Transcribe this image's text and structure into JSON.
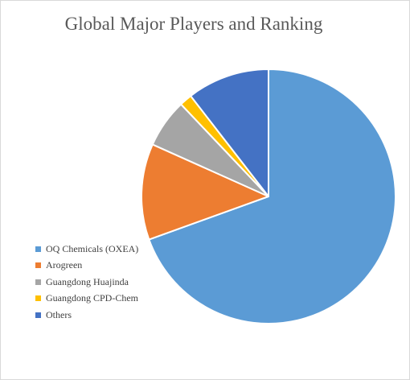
{
  "chart_data": {
    "type": "pie",
    "title": "Global Major Players and Ranking",
    "legend_position": "left",
    "slices": [
      {
        "label": "OQ Chemicals (OXEA)",
        "value": 69.5,
        "color": "#5B9BD5"
      },
      {
        "label": "Arogreen",
        "value": 12.2,
        "color": "#ED7D31"
      },
      {
        "label": "Guangdong Huajinda",
        "value": 6.2,
        "color": "#A5A5A5"
      },
      {
        "label": "Guangdong CPD-Chem",
        "value": 1.6,
        "color": "#FFC000"
      },
      {
        "label": "Others",
        "value": 10.5,
        "color": "#4472C4"
      }
    ]
  }
}
